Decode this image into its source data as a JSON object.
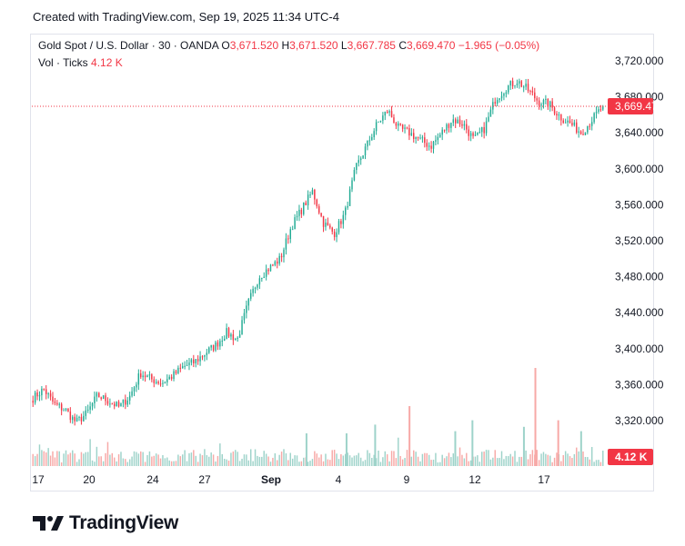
{
  "header": {
    "created_text": "Created with TradingView.com, Sep 19, 2025 11:34 UTC-4"
  },
  "legend": {
    "symbol": "Gold Spot / U.S. Dollar · 30 · OANDA",
    "o_label": "O",
    "o_value": "3,671.520",
    "h_label": "H",
    "h_value": "3,671.520",
    "l_label": "L",
    "l_value": "3,667.785",
    "c_label": "C",
    "c_value": "3,669.470",
    "change": "−1.965 (−0.05%)",
    "vol_label": "Vol · Ticks",
    "vol_value": "4.12 K"
  },
  "colors": {
    "up": "#22ab94",
    "down": "#f23645",
    "vol_up": "#9ed3ca",
    "vol_down": "#f7a9a7",
    "text": "#131722",
    "grid_border": "#e0e3eb"
  },
  "chart_data": {
    "type": "candlestick",
    "title": "Gold Spot / U.S. Dollar · 30 · OANDA",
    "ylim": [
      3290,
      3740
    ],
    "y_ticks": [
      {
        "value": 3720,
        "label": "3,720.000"
      },
      {
        "value": 3680,
        "label": "3,680.000"
      },
      {
        "value": 3640,
        "label": "3,640.000"
      },
      {
        "value": 3600,
        "label": "3,600.000"
      },
      {
        "value": 3560,
        "label": "3,560.000"
      },
      {
        "value": 3520,
        "label": "3,520.000"
      },
      {
        "value": 3480,
        "label": "3,480.000"
      },
      {
        "value": 3440,
        "label": "3,440.000"
      },
      {
        "value": 3400,
        "label": "3,400.000"
      },
      {
        "value": 3360,
        "label": "3,360.000"
      },
      {
        "value": 3320,
        "label": "3,320.000"
      }
    ],
    "x_ticks": [
      {
        "label": "17",
        "bold": false
      },
      {
        "label": "20",
        "bold": false
      },
      {
        "label": "24",
        "bold": false
      },
      {
        "label": "27",
        "bold": false
      },
      {
        "label": "Sep",
        "bold": true
      },
      {
        "label": "4",
        "bold": false
      },
      {
        "label": "9",
        "bold": false
      },
      {
        "label": "12",
        "bold": false
      },
      {
        "label": "17",
        "bold": false
      }
    ],
    "price_path": [
      3345,
      3355,
      3338,
      3332,
      3318,
      3328,
      3348,
      3342,
      3335,
      3347,
      3373,
      3366,
      3362,
      3370,
      3380,
      3385,
      3395,
      3404,
      3418,
      3410,
      3450,
      3480,
      3490,
      3500,
      3535,
      3555,
      3575,
      3540,
      3528,
      3550,
      3600,
      3625,
      3650,
      3665,
      3645,
      3640,
      3632,
      3625,
      3640,
      3655,
      3650,
      3632,
      3645,
      3678,
      3690,
      3698,
      3688,
      3675,
      3672,
      3658,
      3650,
      3640,
      3655,
      3669.47
    ],
    "last_price": {
      "value": 3669.47,
      "label": "3,669.470"
    },
    "volume_label": "4.12 K",
    "volume_spikes": [
      {
        "pos": 0.88,
        "height": 0.9,
        "dir": "down"
      },
      {
        "pos": 0.66,
        "height": 0.55,
        "dir": "down"
      },
      {
        "pos": 0.77,
        "height": 0.42,
        "dir": "up"
      },
      {
        "pos": 0.86,
        "height": 0.36,
        "dir": "up"
      },
      {
        "pos": 0.92,
        "height": 0.42,
        "dir": "down"
      },
      {
        "pos": 0.74,
        "height": 0.32,
        "dir": "up"
      },
      {
        "pos": 0.6,
        "height": 0.38,
        "dir": "up"
      },
      {
        "pos": 0.96,
        "height": 0.32,
        "dir": "up"
      },
      {
        "pos": 0.48,
        "height": 0.3,
        "dir": "up"
      },
      {
        "pos": 0.55,
        "height": 0.3,
        "dir": "up"
      }
    ]
  },
  "brand": {
    "logo_icon": "tradingview-logo-icon",
    "name": "TradingView"
  }
}
